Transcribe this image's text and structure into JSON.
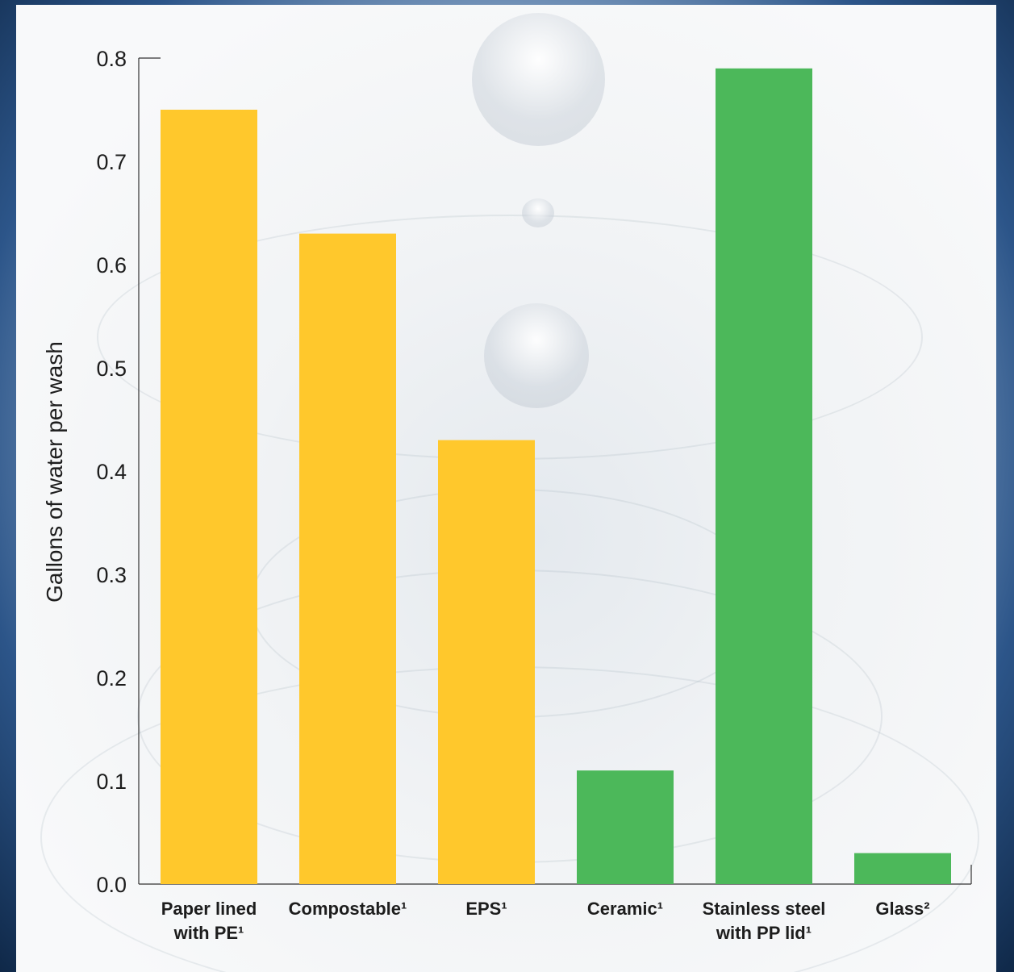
{
  "chart_data": {
    "type": "bar",
    "categories": [
      [
        "Paper lined",
        "with PE¹"
      ],
      [
        "Compostable¹"
      ],
      [
        "EPS¹"
      ],
      [
        "Ceramic¹"
      ],
      [
        "Stainless steel",
        "with PP lid¹"
      ],
      [
        "Glass²"
      ]
    ],
    "values": [
      0.75,
      0.63,
      0.43,
      0.11,
      0.79,
      0.03
    ],
    "bar_colors": [
      "#FFC82C",
      "#FFC82C",
      "#FFC82C",
      "#4CB85A",
      "#4CB85A",
      "#4CB85A"
    ],
    "ylabel": "Gallons of water per wash",
    "xlabel": "",
    "title": "",
    "ylim": [
      0,
      0.8
    ],
    "yticks": [
      0.0,
      0.1,
      0.2,
      0.3,
      0.4,
      0.5,
      0.6,
      0.7,
      0.8
    ],
    "ytick_labels": [
      "0.0",
      "0.1",
      "0.2",
      "0.3",
      "0.4",
      "0.5",
      "0.6",
      "0.7",
      "0.8"
    ],
    "grid": false,
    "legend": "none"
  }
}
